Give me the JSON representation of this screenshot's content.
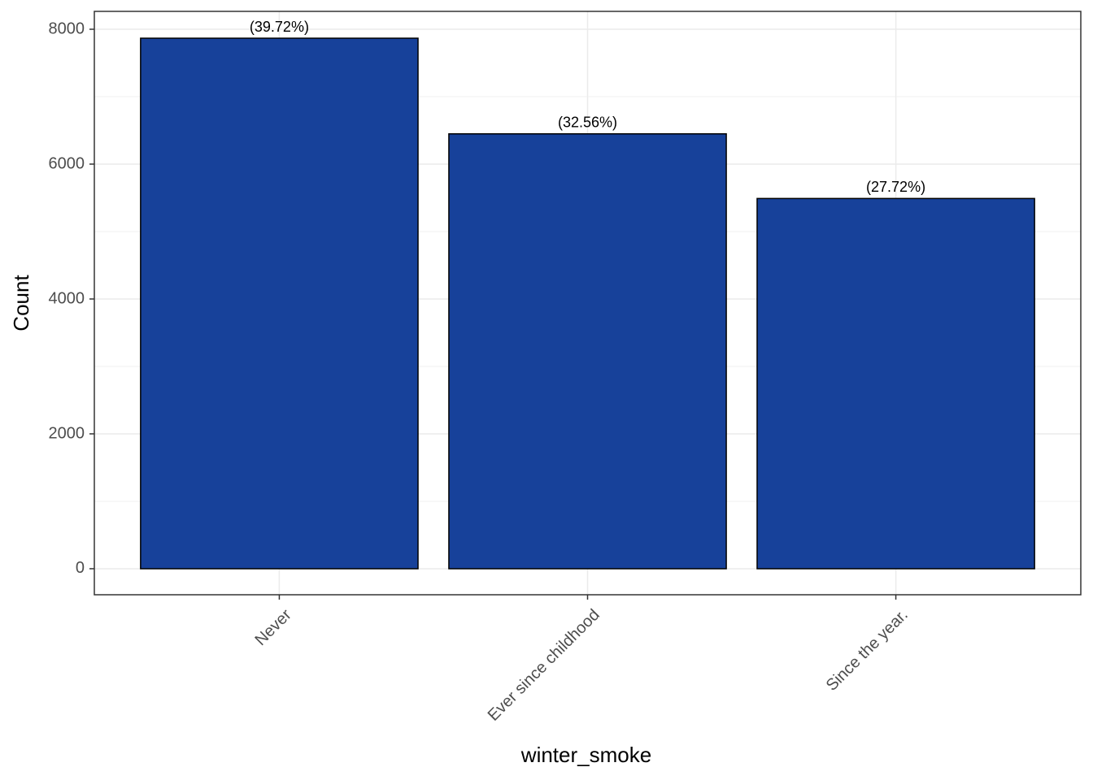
{
  "chart_data": {
    "type": "bar",
    "xlabel": "winter_smoke",
    "ylabel": "Count",
    "categories": [
      "Never",
      "Ever since childhood",
      "Since the year."
    ],
    "values": [
      7867,
      6449,
      5490
    ],
    "annotations": [
      "(39.72%)",
      "(32.56%)",
      "(27.72%)"
    ],
    "color": "#17419a",
    "ylim": [
      -386,
      8265
    ],
    "yticks": [
      0,
      2000,
      4000,
      6000,
      8000
    ],
    "grid": true
  }
}
